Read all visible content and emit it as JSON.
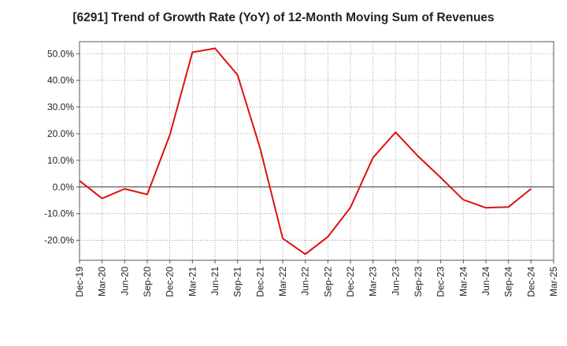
{
  "chart_data": {
    "type": "line",
    "title": "[6291]  Trend of Growth Rate (YoY) of 12-Month Moving Sum of Revenues",
    "xlabel": "",
    "ylabel": "",
    "x_tick_labels": [
      "Dec-19",
      "Mar-20",
      "Jun-20",
      "Sep-20",
      "Dec-20",
      "Mar-21",
      "Jun-21",
      "Sep-21",
      "Dec-21",
      "Mar-22",
      "Jun-22",
      "Sep-22",
      "Dec-22",
      "Mar-23",
      "Jun-23",
      "Sep-23",
      "Dec-23",
      "Mar-24",
      "Jun-24",
      "Sep-24",
      "Dec-24",
      "Mar-25"
    ],
    "y_tick_labels": [
      "-20.0%",
      "-10.0%",
      "0.0%",
      "10.0%",
      "20.0%",
      "30.0%",
      "40.0%",
      "50.0%"
    ],
    "y_ticks": [
      -20,
      -10,
      0,
      10,
      20,
      30,
      40,
      50
    ],
    "ylim": [
      -27.5,
      54.5
    ],
    "grid": true,
    "series": [
      {
        "color": "#dd1111",
        "x": [
          "Dec-19",
          "Mar-20",
          "Jun-20",
          "Sep-20",
          "Dec-20",
          "Mar-21",
          "Jun-21",
          "Sep-21",
          "Dec-21",
          "Mar-22",
          "Jun-22",
          "Sep-22",
          "Dec-22",
          "Mar-23",
          "Jun-23",
          "Sep-23",
          "Dec-23",
          "Mar-24",
          "Jun-24",
          "Sep-24",
          "Dec-24"
        ],
        "values": [
          2.3,
          -4.3,
          -0.7,
          -2.8,
          19.5,
          50.5,
          52.0,
          42.0,
          14.5,
          -19.3,
          -25.2,
          -18.7,
          -7.7,
          11.0,
          20.5,
          11.5,
          3.5,
          -4.8,
          -7.8,
          -7.5,
          -0.7
        ]
      }
    ]
  }
}
